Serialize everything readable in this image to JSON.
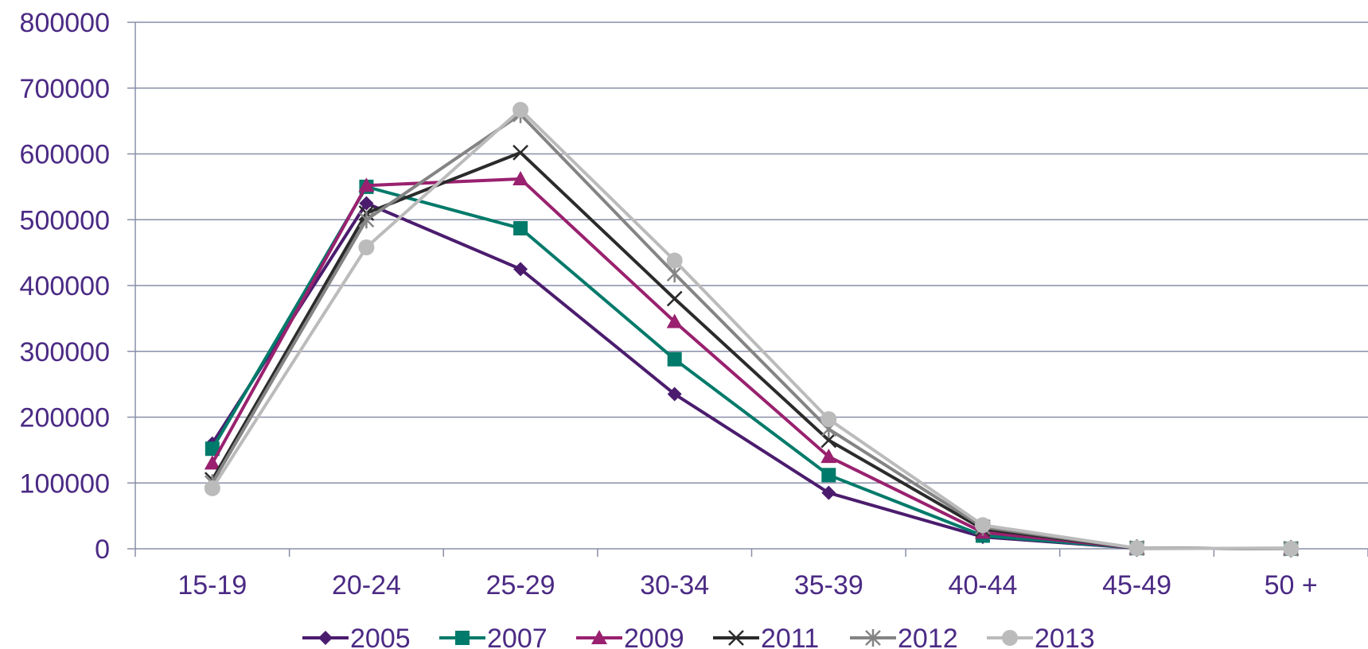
{
  "chart_data": {
    "type": "line",
    "title": "",
    "xlabel": "",
    "ylabel": "",
    "categories": [
      "15-19",
      "20-24",
      "25-29",
      "30-34",
      "35-39",
      "40-44",
      "45-49",
      "50 +"
    ],
    "ylim": [
      0,
      800000
    ],
    "yticks": [
      0,
      100000,
      200000,
      300000,
      400000,
      500000,
      600000,
      700000,
      800000
    ],
    "ytick_labels": [
      "0",
      "100000",
      "200000",
      "300000",
      "400000",
      "500000",
      "600000",
      "700000",
      "800000"
    ],
    "grid": true,
    "legend_position": "bottom",
    "series": [
      {
        "name": "2005",
        "color": "#4B1C6E",
        "marker": "diamond",
        "values": [
          160000,
          525000,
          425000,
          235000,
          85000,
          18000,
          1000,
          200
        ]
      },
      {
        "name": "2007",
        "color": "#007A6A",
        "marker": "square",
        "values": [
          152000,
          550000,
          487000,
          288000,
          112000,
          20000,
          1000,
          200
        ]
      },
      {
        "name": "2009",
        "color": "#99216F",
        "marker": "triangle",
        "values": [
          130000,
          552000,
          562000,
          345000,
          140000,
          25000,
          1000,
          200
        ]
      },
      {
        "name": "2011",
        "color": "#2B2B2B",
        "marker": "x",
        "values": [
          105000,
          510000,
          602000,
          380000,
          165000,
          30000,
          1000,
          200
        ]
      },
      {
        "name": "2012",
        "color": "#848484",
        "marker": "star",
        "values": [
          100000,
          500000,
          660000,
          418000,
          182000,
          33000,
          1000,
          200
        ]
      },
      {
        "name": "2013",
        "color": "#BBBBBB",
        "marker": "circle",
        "values": [
          92000,
          458000,
          667000,
          438000,
          197000,
          36000,
          1000,
          200
        ]
      }
    ]
  }
}
